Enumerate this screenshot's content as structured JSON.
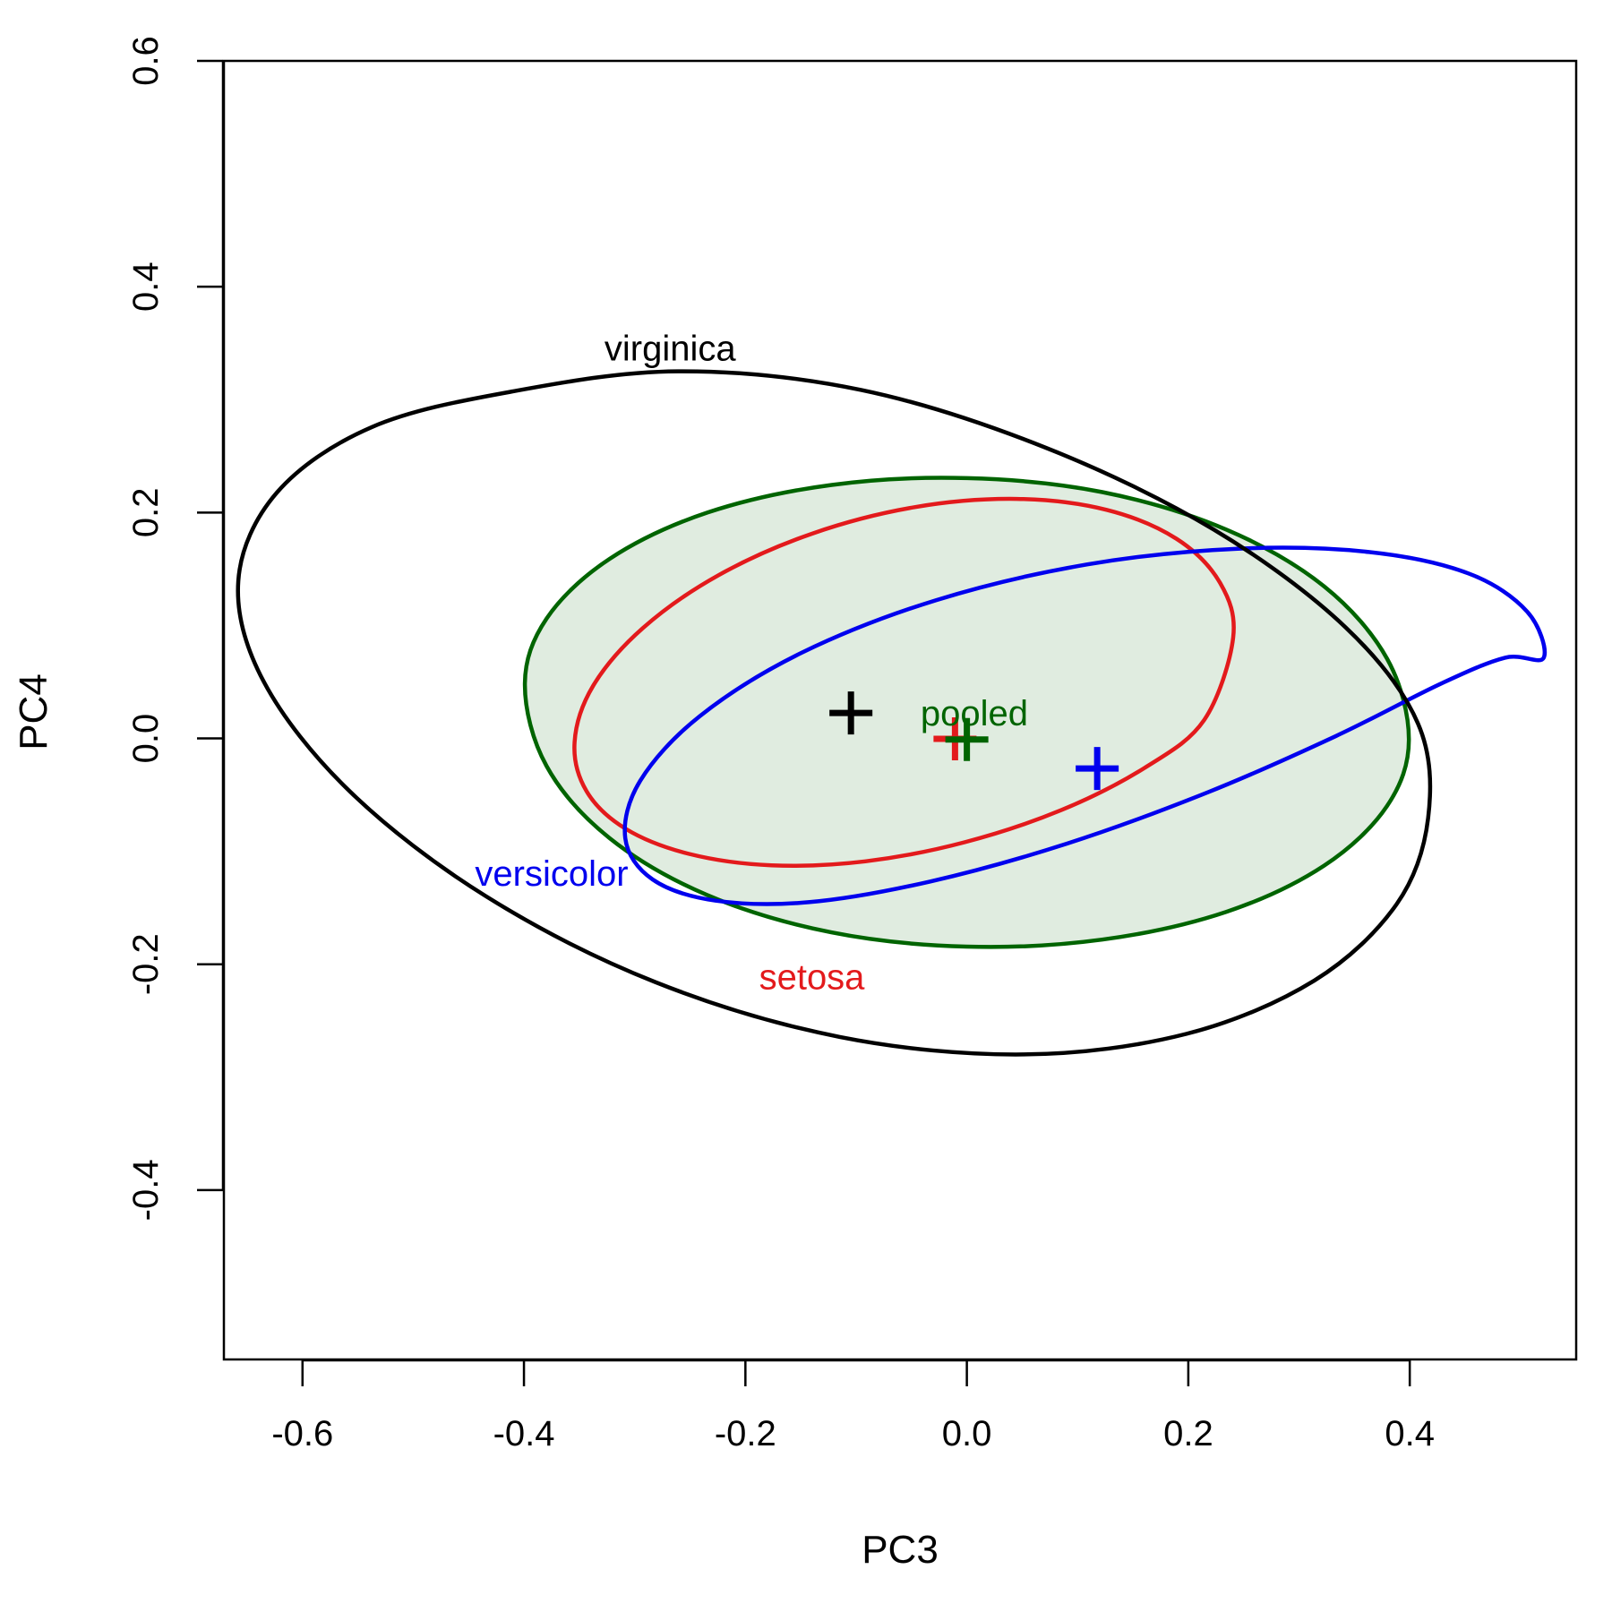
{
  "chart_data": {
    "type": "scatter",
    "title": "",
    "xlabel": "PC3",
    "ylabel": "PC4",
    "xlim": [
      -0.671,
      0.5503
    ],
    "ylim": [
      -0.55,
      0.6
    ],
    "xticks": [
      -0.6,
      -0.4,
      -0.2,
      0.0,
      0.2,
      0.4
    ],
    "yticks": [
      -0.4,
      -0.2,
      0.0,
      0.2,
      0.4,
      0.6
    ],
    "xtick_labels": [
      "-0.6",
      "-0.4",
      "-0.2",
      "0.0",
      "0.2",
      "0.4"
    ],
    "ytick_labels": [
      "-0.4",
      "-0.2",
      "0.0",
      "0.2",
      "0.4",
      "0.6"
    ],
    "grid": false,
    "legend": "none",
    "series": [
      {
        "name": "setosa",
        "color": "#e31a1c",
        "filled": false,
        "fill": "",
        "center": [
          -0.0107,
          -0.0004
        ],
        "ellipse_points": [
          [
            0.2405,
            0.0894
          ],
          [
            0.2287,
            0.1377
          ],
          [
            0.1894,
            0.1767
          ],
          [
            0.1262,
            0.2024
          ],
          [
            0.0451,
            0.2121
          ],
          [
            -0.0465,
            0.2049
          ],
          [
            -0.1394,
            0.1815
          ],
          [
            -0.2243,
            0.1445
          ],
          [
            -0.2925,
            0.0978
          ],
          [
            -0.3375,
            0.0466
          ],
          [
            -0.3543,
            -0.0034
          ],
          [
            -0.3435,
            -0.0467
          ],
          [
            -0.3081,
            -0.0801
          ],
          [
            -0.2508,
            -0.1023
          ],
          [
            -0.1764,
            -0.1124
          ],
          [
            -0.0917,
            -0.1089
          ],
          [
            -0.0021,
            -0.092
          ],
          [
            0.0852,
            -0.0635
          ],
          [
            0.1603,
            -0.0262
          ],
          [
            0.2143,
            0.0163
          ]
        ],
        "label": "setosa",
        "label_pos": [
          -0.14,
          -0.211
        ]
      },
      {
        "name": "versicolor",
        "color": "#0000ee",
        "filled": false,
        "fill": "",
        "center": [
          0.1177,
          -0.0267
        ],
        "ellipse_points": [
          [
            0.521,
            0.0715
          ],
          [
            0.5061,
            0.1122
          ],
          [
            0.453,
            0.1461
          ],
          [
            0.363,
            0.1651
          ],
          [
            0.2445,
            0.168
          ],
          [
            0.1089,
            0.1541
          ],
          [
            -0.0275,
            0.1225
          ],
          [
            -0.1492,
            0.0758
          ],
          [
            -0.2411,
            0.0198
          ],
          [
            -0.295,
            -0.0375
          ],
          [
            -0.3085,
            -0.0884
          ],
          [
            -0.2838,
            -0.1249
          ],
          [
            -0.2269,
            -0.1437
          ],
          [
            -0.1418,
            -0.145
          ],
          [
            -0.0334,
            -0.1268
          ],
          [
            0.0904,
            -0.0932
          ],
          [
            0.2174,
            -0.0478
          ],
          [
            0.3333,
            0.0021
          ],
          [
            0.4273,
            0.0481
          ],
          [
            0.4861,
            0.0715
          ]
        ],
        "label": "versicolor",
        "label_pos": [
          -0.375,
          -0.1194
        ]
      },
      {
        "name": "virginica",
        "color": "#000000",
        "filled": false,
        "fill": "",
        "center": [
          -0.1047,
          0.0225
        ],
        "ellipse_points": [
          [
            0.4166,
            -0.0705
          ],
          [
            0.3882,
            -0.1467
          ],
          [
            0.3138,
            -0.2144
          ],
          [
            0.1981,
            -0.2617
          ],
          [
            0.0507,
            -0.2799
          ],
          [
            -0.1147,
            -0.2644
          ],
          [
            -0.2814,
            -0.2158
          ],
          [
            -0.434,
            -0.14
          ],
          [
            -0.5572,
            -0.047
          ],
          [
            -0.635,
            0.0503
          ],
          [
            -0.658,
            0.1394
          ],
          [
            -0.623,
            0.2178
          ],
          [
            -0.5374,
            0.2757
          ],
          [
            -0.4126,
            0.3069
          ],
          [
            -0.2609,
            0.3251
          ],
          [
            -0.0955,
            0.3086
          ],
          [
            0.0706,
            0.2577
          ],
          [
            0.223,
            0.185
          ],
          [
            0.3421,
            0.0983
          ],
          [
            0.4074,
            0.0133
          ]
        ],
        "label": "virginica",
        "label_pos": [
          -0.268,
          0.346
        ]
      },
      {
        "name": "pooled",
        "color": "#006400",
        "filled": true,
        "fill": "rgba(0,100,0,0.12)",
        "center": [
          0.0,
          -0.001
        ],
        "ellipse_points": [
          [
            0.3992,
            -0.001
          ],
          [
            0.3796,
            0.0705
          ],
          [
            0.3228,
            0.1345
          ],
          [
            0.2345,
            0.1849
          ],
          [
            0.1224,
            0.2181
          ],
          [
            0.0004,
            0.2305
          ],
          [
            -0.1221,
            0.2245
          ],
          [
            -0.2342,
            0.2
          ],
          [
            -0.3226,
            0.159
          ],
          [
            -0.3795,
            0.1062
          ],
          [
            -0.3992,
            0.0477
          ],
          [
            -0.3796,
            -0.0245
          ],
          [
            -0.3228,
            -0.0882
          ],
          [
            -0.2345,
            -0.1387
          ],
          [
            -0.1224,
            -0.1718
          ],
          [
            -0.0004,
            -0.1844
          ],
          [
            0.1221,
            -0.1782
          ],
          [
            0.2342,
            -0.1536
          ],
          [
            0.3226,
            -0.1127
          ],
          [
            0.3795,
            -0.0599
          ]
        ],
        "label": "pooled",
        "label_pos": [
          0.0067,
          0.0228
        ]
      }
    ]
  }
}
